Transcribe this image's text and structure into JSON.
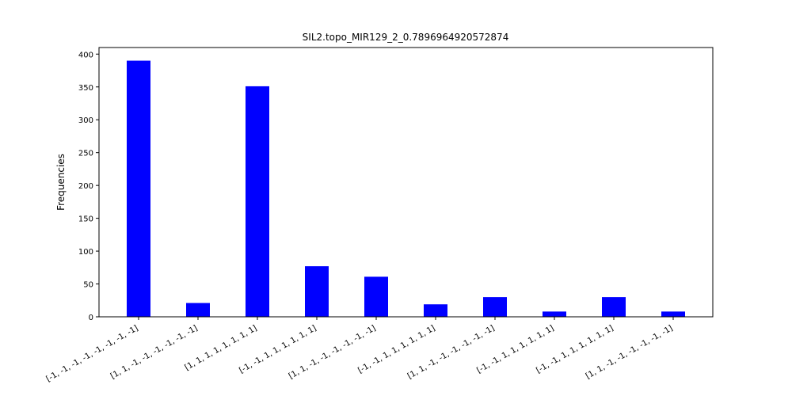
{
  "chart_data": {
    "type": "bar",
    "title": "SIL2.topo_MIR129_2_0.7896964920572874",
    "xlabel": "",
    "ylabel": "Frequencies",
    "ylim": [
      0,
      410
    ],
    "yticks": [
      0,
      50,
      100,
      150,
      200,
      250,
      300,
      350,
      400
    ],
    "bar_color": "#0000ff",
    "grid": false,
    "legend": "none",
    "categories": [
      "[-1, -1, -1, -1, -1, -1, -1, -1]",
      "[1, 1, -1, -1, -1, -1, -1, -1]",
      "[1, 1, 1, 1, 1, 1, 1, 1]",
      "[-1, -1, 1, 1, 1, 1, 1, 1]",
      "[1, 1, -1, -1, -1, -1, -1, -1]",
      "[-1, -1, 1, 1, 1, 1, 1, 1]",
      "[1, 1, -1, -1, -1, -1, -1, -1]",
      "[-1, -1, 1, 1, 1, 1, 1, 1]",
      "[-1, -1, 1, 1, 1, 1, 1, 1]",
      "[1, 1, -1, -1, -1, -1, -1, -1]"
    ],
    "values": [
      390,
      21,
      351,
      77,
      61,
      19,
      30,
      8,
      30,
      8
    ]
  }
}
